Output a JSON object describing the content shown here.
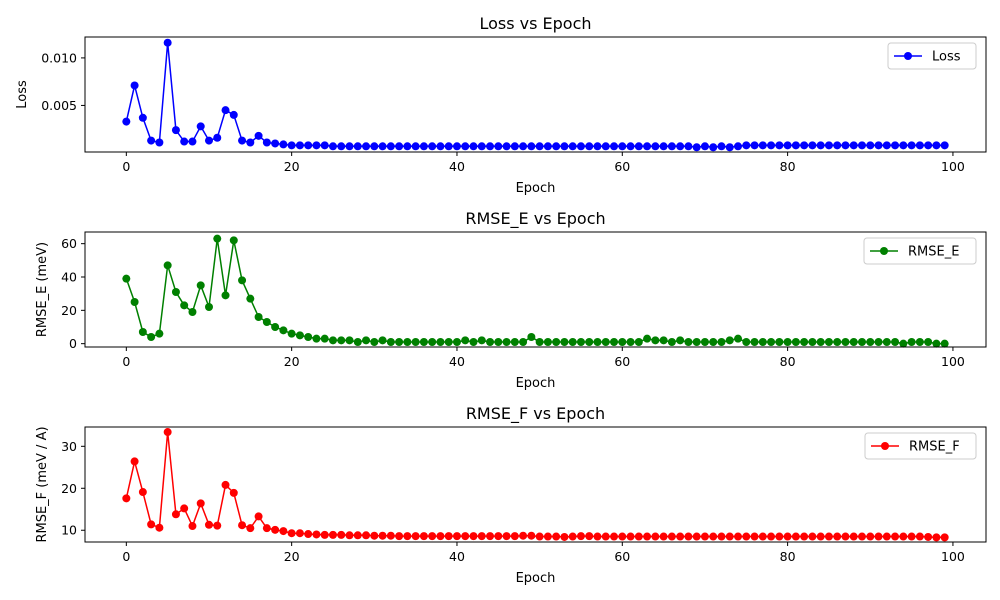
{
  "chart_data": [
    {
      "type": "line",
      "title": "Loss vs Epoch",
      "xlabel": "Epoch",
      "ylabel": "Loss",
      "xlim": [
        -5,
        104
      ],
      "ylim": [
        0.0001,
        0.0122
      ],
      "xticks": [
        0,
        20,
        40,
        60,
        80,
        100
      ],
      "xtick_labels": [
        "0",
        "20",
        "40",
        "60",
        "80",
        "100"
      ],
      "yticks": [
        0.005,
        0.01
      ],
      "ytick_labels": [
        "0.005",
        "0.010"
      ],
      "legend_position": "top-right",
      "grid": false,
      "series": [
        {
          "name": "Loss",
          "color": "#0000ff",
          "marker": "circle",
          "x": [
            0,
            1,
            2,
            3,
            4,
            5,
            6,
            7,
            8,
            9,
            10,
            11,
            12,
            13,
            14,
            15,
            16,
            17,
            18,
            19,
            20,
            21,
            22,
            23,
            24,
            25,
            26,
            27,
            28,
            29,
            30,
            31,
            32,
            33,
            34,
            35,
            36,
            37,
            38,
            39,
            40,
            41,
            42,
            43,
            44,
            45,
            46,
            47,
            48,
            49,
            50,
            51,
            52,
            53,
            54,
            55,
            56,
            57,
            58,
            59,
            60,
            61,
            62,
            63,
            64,
            65,
            66,
            67,
            68,
            69,
            70,
            71,
            72,
            73,
            74,
            75,
            76,
            77,
            78,
            79,
            80,
            81,
            82,
            83,
            84,
            85,
            86,
            87,
            88,
            89,
            90,
            91,
            92,
            93,
            94,
            95,
            96,
            97,
            98,
            99
          ],
          "values": [
            0.0033,
            0.0071,
            0.0037,
            0.0013,
            0.0011,
            0.0116,
            0.0024,
            0.0012,
            0.0012,
            0.0028,
            0.0013,
            0.0016,
            0.0045,
            0.004,
            0.0013,
            0.0011,
            0.0018,
            0.0011,
            0.001,
            0.0009,
            0.0008,
            0.0008,
            0.0008,
            0.0008,
            0.0008,
            0.0007,
            0.0007,
            0.0007,
            0.0007,
            0.0007,
            0.0007,
            0.0007,
            0.0007,
            0.0007,
            0.0007,
            0.0007,
            0.0007,
            0.0007,
            0.0007,
            0.0007,
            0.0007,
            0.0007,
            0.0007,
            0.0007,
            0.0007,
            0.0007,
            0.0007,
            0.0007,
            0.0007,
            0.0007,
            0.0007,
            0.0007,
            0.0007,
            0.0007,
            0.0007,
            0.0007,
            0.0007,
            0.0007,
            0.0007,
            0.0007,
            0.0007,
            0.0007,
            0.0007,
            0.0007,
            0.0007,
            0.0007,
            0.0007,
            0.0007,
            0.0007,
            0.0006,
            0.0007,
            0.0006,
            0.0007,
            0.0006,
            0.0007,
            0.0008,
            0.0008,
            0.0008,
            0.0008,
            0.0008,
            0.0008,
            0.0008,
            0.0008,
            0.0008,
            0.0008,
            0.0008,
            0.0008,
            0.0008,
            0.0008,
            0.0008,
            0.0008,
            0.0008,
            0.0008,
            0.0008,
            0.0008,
            0.0008,
            0.0008,
            0.0008,
            0.0008,
            0.0008
          ]
        }
      ]
    },
    {
      "type": "line",
      "title": "RMSE_E vs Epoch",
      "xlabel": "Epoch",
      "ylabel": "RMSE_E (meV)",
      "xlim": [
        -5,
        104
      ],
      "ylim": [
        -2,
        67
      ],
      "xticks": [
        0,
        20,
        40,
        60,
        80,
        100
      ],
      "xtick_labels": [
        "0",
        "20",
        "40",
        "60",
        "80",
        "100"
      ],
      "yticks": [
        0,
        20,
        40,
        60
      ],
      "ytick_labels": [
        "0",
        "20",
        "40",
        "60"
      ],
      "legend_position": "top-right",
      "grid": false,
      "series": [
        {
          "name": "RMSE_E",
          "color": "#008000",
          "marker": "circle",
          "x": [
            0,
            1,
            2,
            3,
            4,
            5,
            6,
            7,
            8,
            9,
            10,
            11,
            12,
            13,
            14,
            15,
            16,
            17,
            18,
            19,
            20,
            21,
            22,
            23,
            24,
            25,
            26,
            27,
            28,
            29,
            30,
            31,
            32,
            33,
            34,
            35,
            36,
            37,
            38,
            39,
            40,
            41,
            42,
            43,
            44,
            45,
            46,
            47,
            48,
            49,
            50,
            51,
            52,
            53,
            54,
            55,
            56,
            57,
            58,
            59,
            60,
            61,
            62,
            63,
            64,
            65,
            66,
            67,
            68,
            69,
            70,
            71,
            72,
            73,
            74,
            75,
            76,
            77,
            78,
            79,
            80,
            81,
            82,
            83,
            84,
            85,
            86,
            87,
            88,
            89,
            90,
            91,
            92,
            93,
            94,
            95,
            96,
            97,
            98,
            99
          ],
          "values": [
            39,
            25,
            7,
            4,
            6,
            47,
            31,
            23,
            19,
            35,
            22,
            63,
            29,
            62,
            38,
            27,
            16,
            13,
            10,
            8,
            6,
            5,
            4,
            3,
            3,
            2,
            2,
            2,
            1,
            2,
            1,
            2,
            1,
            1,
            1,
            1,
            1,
            1,
            1,
            1,
            1,
            2,
            1,
            2,
            1,
            1,
            1,
            1,
            1,
            4,
            1,
            1,
            1,
            1,
            1,
            1,
            1,
            1,
            1,
            1,
            1,
            1,
            1,
            3,
            2,
            2,
            1,
            2,
            1,
            1,
            1,
            1,
            1,
            2,
            3,
            1,
            1,
            1,
            1,
            1,
            1,
            1,
            1,
            1,
            1,
            1,
            1,
            1,
            1,
            1,
            1,
            1,
            1,
            1,
            0,
            1,
            1,
            1,
            0,
            0
          ]
        }
      ]
    },
    {
      "type": "line",
      "title": "RMSE_F vs Epoch",
      "xlabel": "Epoch",
      "ylabel": "RMSE_F (meV / A)",
      "xlim": [
        -5,
        104
      ],
      "ylim": [
        7.2,
        34.6
      ],
      "xticks": [
        0,
        20,
        40,
        60,
        80,
        100
      ],
      "xtick_labels": [
        "0",
        "20",
        "40",
        "60",
        "80",
        "100"
      ],
      "yticks": [
        10,
        20,
        30
      ],
      "ytick_labels": [
        "10",
        "20",
        "30"
      ],
      "legend_position": "top-right",
      "grid": false,
      "series": [
        {
          "name": "RMSE_F",
          "color": "#ff0000",
          "marker": "circle",
          "x": [
            0,
            1,
            2,
            3,
            4,
            5,
            6,
            7,
            8,
            9,
            10,
            11,
            12,
            13,
            14,
            15,
            16,
            17,
            18,
            19,
            20,
            21,
            22,
            23,
            24,
            25,
            26,
            27,
            28,
            29,
            30,
            31,
            32,
            33,
            34,
            35,
            36,
            37,
            38,
            39,
            40,
            41,
            42,
            43,
            44,
            45,
            46,
            47,
            48,
            49,
            50,
            51,
            52,
            53,
            54,
            55,
            56,
            57,
            58,
            59,
            60,
            61,
            62,
            63,
            64,
            65,
            66,
            67,
            68,
            69,
            70,
            71,
            72,
            73,
            74,
            75,
            76,
            77,
            78,
            79,
            80,
            81,
            82,
            83,
            84,
            85,
            86,
            87,
            88,
            89,
            90,
            91,
            92,
            93,
            94,
            95,
            96,
            97,
            98,
            99
          ],
          "values": [
            17.6,
            26.4,
            19.1,
            11.4,
            10.6,
            33.4,
            13.8,
            15.2,
            11.0,
            16.4,
            11.3,
            11.1,
            20.8,
            18.9,
            11.2,
            10.5,
            13.3,
            10.5,
            10.1,
            9.8,
            9.3,
            9.3,
            9.1,
            9.0,
            8.9,
            8.9,
            8.9,
            8.8,
            8.8,
            8.8,
            8.7,
            8.7,
            8.7,
            8.6,
            8.6,
            8.6,
            8.6,
            8.6,
            8.6,
            8.6,
            8.6,
            8.6,
            8.6,
            8.6,
            8.6,
            8.6,
            8.6,
            8.6,
            8.7,
            8.7,
            8.5,
            8.5,
            8.5,
            8.4,
            8.5,
            8.6,
            8.6,
            8.5,
            8.5,
            8.5,
            8.5,
            8.5,
            8.5,
            8.5,
            8.5,
            8.5,
            8.5,
            8.5,
            8.5,
            8.5,
            8.5,
            8.5,
            8.5,
            8.5,
            8.5,
            8.5,
            8.5,
            8.5,
            8.5,
            8.5,
            8.5,
            8.5,
            8.5,
            8.5,
            8.5,
            8.5,
            8.5,
            8.5,
            8.5,
            8.5,
            8.5,
            8.5,
            8.5,
            8.5,
            8.5,
            8.5,
            8.5,
            8.4,
            8.3,
            8.3
          ]
        }
      ]
    }
  ]
}
